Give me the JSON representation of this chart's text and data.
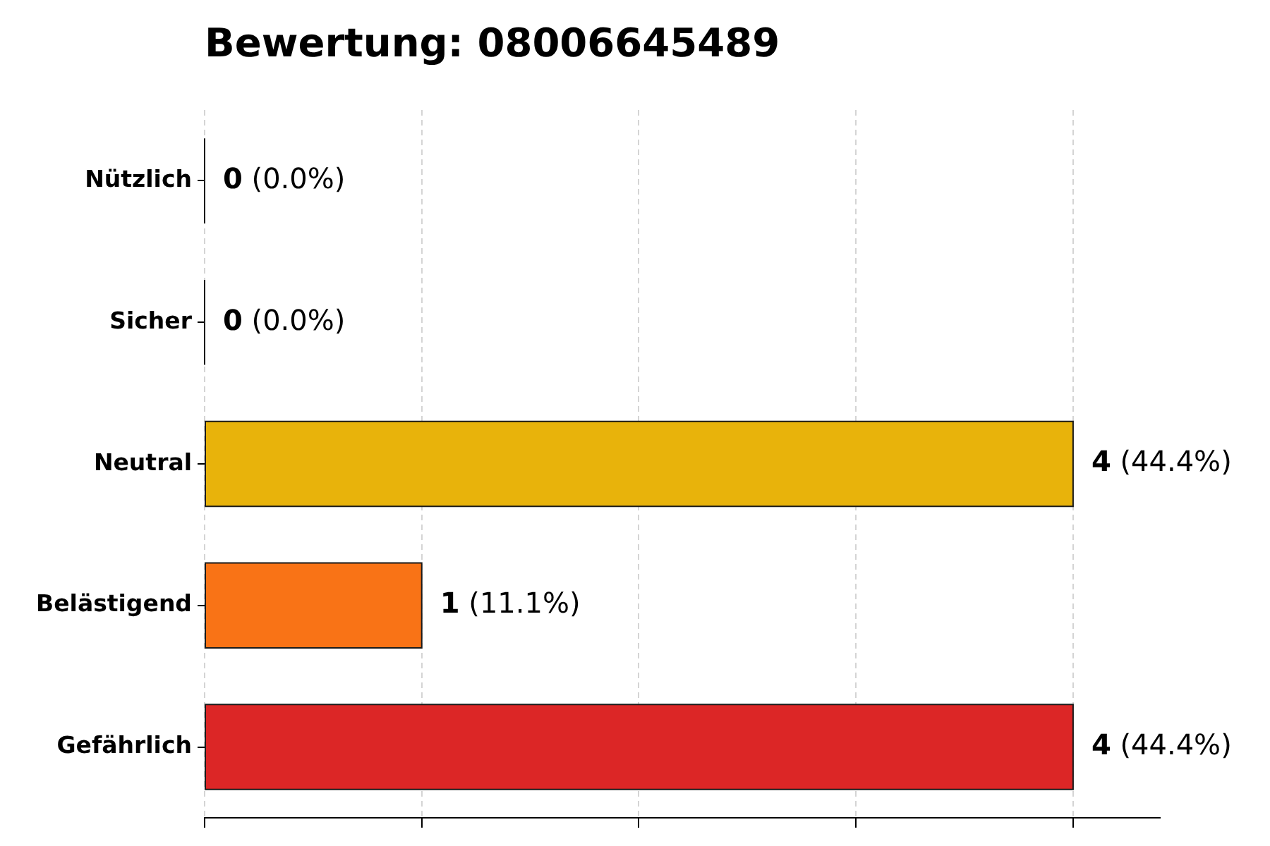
{
  "chart_data": {
    "type": "bar",
    "orientation": "horizontal",
    "title": "Bewertung: 08006645489",
    "categories": [
      "Nützlich",
      "Sicher",
      "Neutral",
      "Belästigend",
      "Gefährlich"
    ],
    "values": [
      0,
      0,
      4,
      1,
      4
    ],
    "colors": [
      "#1a1a1a",
      "#1a1a1a",
      "#e8b30b",
      "#f97316",
      "#dc2626"
    ],
    "value_labels": [
      "0 (0.0%)",
      "0 (0.0%)",
      "4 (44.4%)",
      "1 (11.1%)",
      "4 (44.4%)"
    ],
    "xlim": [
      0,
      4.4
    ],
    "xticks": [
      {
        "value": 0,
        "label": null
      },
      {
        "value": 1,
        "label": null
      },
      {
        "value": 2,
        "label": null
      },
      {
        "value": 3,
        "label": null
      },
      {
        "value": 4,
        "label": null
      }
    ],
    "grid": "x",
    "tick_labels": "y"
  }
}
